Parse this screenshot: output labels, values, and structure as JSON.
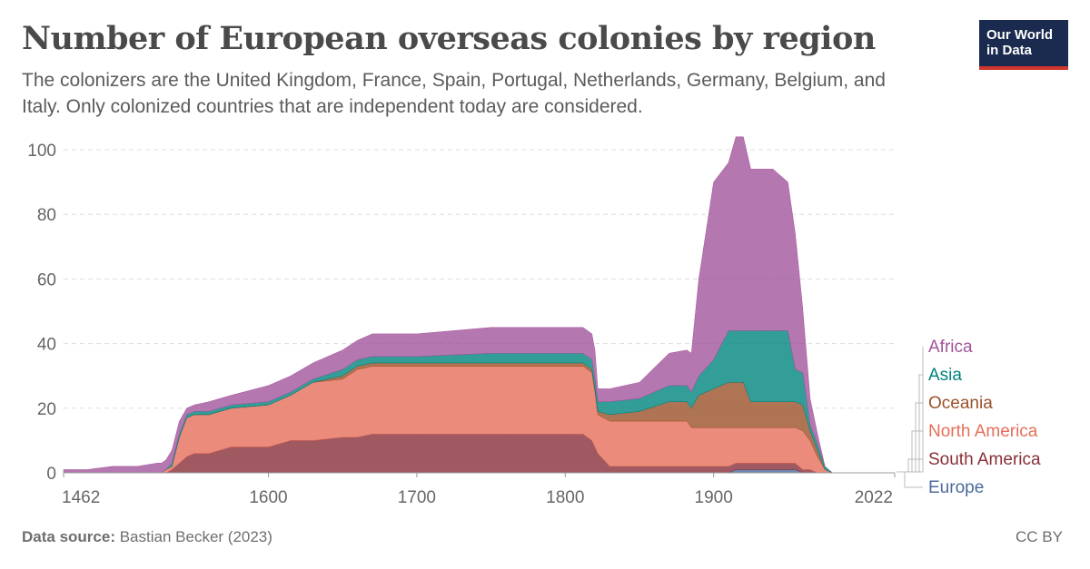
{
  "header": {
    "title": "Number of European overseas colonies by region",
    "subtitle": "The colonizers are the United Kingdom, France, Spain, Portugal, Netherlands, Germany, Belgium, and Italy. Only colonized countries that are independent today are considered.",
    "logo_line1": "Our World",
    "logo_line2": "in Data"
  },
  "footer": {
    "source_label": "Data source:",
    "source_text": "Bastian Becker (2023)",
    "license": "CC BY"
  },
  "chart_data": {
    "type": "area",
    "stacked": true,
    "x_ticks": [
      "1462",
      "1600",
      "1700",
      "1800",
      "1900",
      "2022"
    ],
    "y_ticks": [
      "0",
      "20",
      "40",
      "60",
      "80",
      "100"
    ],
    "xlim": [
      1462,
      2022
    ],
    "ylim": [
      0,
      100
    ],
    "grid": "horizontal-dashed",
    "legend": "right",
    "x": [
      1462,
      1478,
      1495,
      1510,
      1512,
      1525,
      1528,
      1531,
      1535,
      1540,
      1545,
      1550,
      1560,
      1575,
      1600,
      1615,
      1630,
      1650,
      1660,
      1670,
      1700,
      1750,
      1760,
      1790,
      1800,
      1812,
      1818,
      1820,
      1822,
      1830,
      1850,
      1870,
      1882,
      1885,
      1890,
      1900,
      1910,
      1915,
      1920,
      1925,
      1930,
      1940,
      1950,
      1955,
      1960,
      1965,
      1970,
      1975,
      1980,
      1985,
      2022
    ],
    "series": [
      {
        "name": "Europe",
        "color": "#4c6a9c",
        "values": [
          0,
          0,
          0,
          0,
          0,
          0,
          0,
          0,
          0,
          0,
          0,
          0,
          0,
          0,
          0,
          0,
          0,
          0,
          0,
          0,
          0,
          0,
          0,
          0,
          0,
          0,
          0,
          0,
          0,
          0,
          0,
          0,
          0,
          0,
          0,
          0,
          0,
          1,
          1,
          1,
          1,
          1,
          1,
          1,
          0,
          0,
          0,
          0,
          0,
          0,
          0
        ]
      },
      {
        "name": "South America",
        "color": "#883039",
        "values": [
          0,
          0,
          0,
          0,
          0,
          0,
          0,
          0,
          1,
          3,
          5,
          6,
          6,
          8,
          8,
          10,
          10,
          11,
          11,
          12,
          12,
          12,
          12,
          12,
          12,
          12,
          10,
          8,
          6,
          2,
          2,
          2,
          2,
          2,
          2,
          2,
          2,
          2,
          2,
          2,
          2,
          2,
          2,
          2,
          1,
          1,
          0,
          0,
          0,
          0,
          0
        ]
      },
      {
        "name": "North America",
        "color": "#e56e5a",
        "values": [
          0,
          0,
          0,
          0,
          0,
          0,
          0,
          1,
          1,
          8,
          12,
          12,
          12,
          12,
          13,
          14,
          18,
          18,
          21,
          21,
          21,
          21,
          21,
          21,
          21,
          21,
          21,
          17,
          12,
          14,
          14,
          14,
          14,
          12,
          12,
          12,
          12,
          11,
          11,
          11,
          11,
          11,
          11,
          11,
          12,
          9,
          5,
          1,
          0,
          0,
          0
        ]
      },
      {
        "name": "Oceania",
        "color": "#9a5129",
        "values": [
          0,
          0,
          0,
          0,
          0,
          0,
          0,
          0,
          0,
          0,
          0,
          0,
          0,
          0,
          0,
          0,
          0,
          1,
          1,
          1,
          1,
          1,
          1,
          1,
          1,
          1,
          1,
          1,
          1,
          2,
          3,
          6,
          6,
          6,
          10,
          12,
          14,
          14,
          14,
          8,
          8,
          8,
          8,
          8,
          8,
          3,
          2,
          0,
          0,
          0,
          0
        ]
      },
      {
        "name": "Asia",
        "color": "#00847e",
        "values": [
          0,
          0,
          0,
          0,
          0,
          0,
          0,
          0,
          1,
          1,
          1,
          1,
          1,
          1,
          1,
          1,
          1,
          2,
          2,
          2,
          2,
          3,
          3,
          3,
          3,
          3,
          3,
          3,
          3,
          4,
          4,
          5,
          5,
          5,
          6,
          9,
          16,
          16,
          16,
          22,
          22,
          22,
          22,
          10,
          10,
          2,
          2,
          1,
          0,
          0,
          0
        ]
      },
      {
        "name": "Africa",
        "color": "#a2559c",
        "values": [
          1,
          1,
          2,
          2,
          2,
          3,
          3,
          3,
          4,
          4,
          2,
          2,
          3,
          3,
          5,
          5,
          5,
          6,
          6,
          7,
          7,
          8,
          8,
          8,
          8,
          8,
          8,
          9,
          4,
          4,
          5,
          10,
          11,
          12,
          30,
          55,
          52,
          60,
          60,
          50,
          50,
          50,
          46,
          42,
          20,
          8,
          3,
          0,
          0,
          0,
          0
        ]
      }
    ]
  }
}
